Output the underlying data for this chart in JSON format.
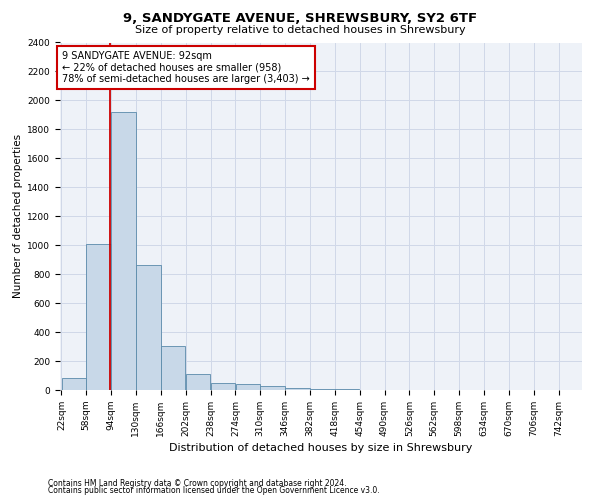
{
  "title1": "9, SANDYGATE AVENUE, SHREWSBURY, SY2 6TF",
  "title2": "Size of property relative to detached houses in Shrewsbury",
  "xlabel": "Distribution of detached houses by size in Shrewsbury",
  "ylabel": "Number of detached properties",
  "footnote1": "Contains HM Land Registry data © Crown copyright and database right 2024.",
  "footnote2": "Contains public sector information licensed under the Open Government Licence v3.0.",
  "bin_edges": [
    22,
    58,
    94,
    130,
    166,
    202,
    238,
    274,
    310,
    346,
    382,
    418,
    454,
    490,
    526,
    562,
    598,
    634,
    670,
    706,
    742
  ],
  "bar_heights": [
    80,
    1010,
    1920,
    860,
    305,
    110,
    50,
    40,
    25,
    15,
    5,
    5,
    3,
    3,
    2,
    2,
    1,
    1,
    1,
    1
  ],
  "bar_color": "#c8d8e8",
  "bar_edge_color": "#5a8aaa",
  "grid_color": "#d0d8e8",
  "background_color": "#eef2f8",
  "property_size": 92,
  "annotation_text1": "9 SANDYGATE AVENUE: 92sqm",
  "annotation_text2": "← 22% of detached houses are smaller (958)",
  "annotation_text3": "78% of semi-detached houses are larger (3,403) →",
  "red_line_color": "#cc0000",
  "annotation_box_color": "#ffffff",
  "annotation_box_edge": "#cc0000",
  "ylim": [
    0,
    2400
  ],
  "yticks": [
    0,
    200,
    400,
    600,
    800,
    1000,
    1200,
    1400,
    1600,
    1800,
    2000,
    2200,
    2400
  ],
  "title1_fontsize": 9.5,
  "title2_fontsize": 8.0,
  "ylabel_fontsize": 7.5,
  "xlabel_fontsize": 8.0,
  "footnote_fontsize": 5.5,
  "tick_fontsize": 6.5,
  "ann_fontsize": 7.0
}
